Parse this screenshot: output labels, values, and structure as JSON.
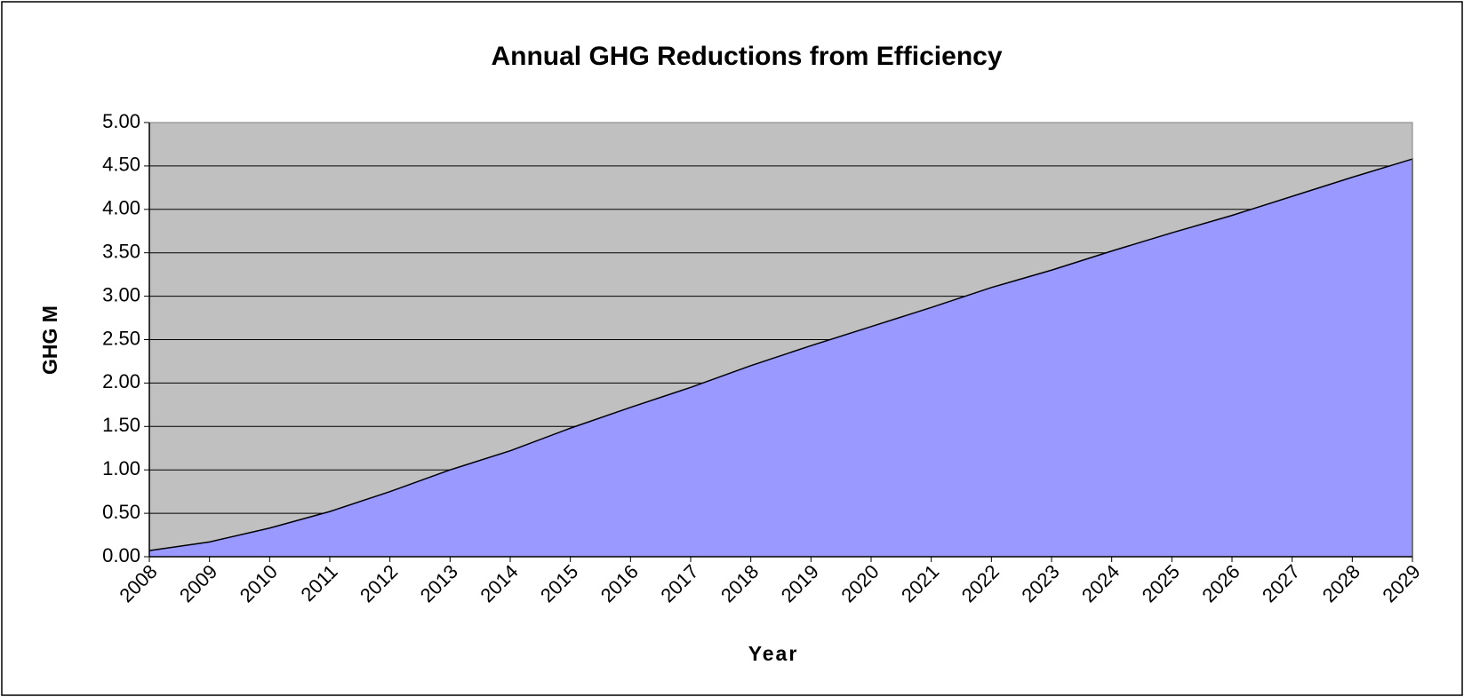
{
  "chart_data": {
    "type": "area",
    "title": "Annual GHG Reductions from Efficiency",
    "xlabel": "Year",
    "ylabel": "GHG M",
    "categories": [
      "2008",
      "2009",
      "2010",
      "2011",
      "2012",
      "2013",
      "2014",
      "2015",
      "2016",
      "2017",
      "2018",
      "2019",
      "2020",
      "2021",
      "2022",
      "2023",
      "2024",
      "2025",
      "2026",
      "2027",
      "2028",
      "2029"
    ],
    "series": [
      {
        "color": "#9999ff",
        "values": [
          0.07,
          0.17,
          0.33,
          0.52,
          0.75,
          1.0,
          1.22,
          1.48,
          1.72,
          1.95,
          2.2,
          2.43,
          2.65,
          2.87,
          3.1,
          3.3,
          3.52,
          3.73,
          3.93,
          4.15,
          4.37,
          4.58
        ]
      }
    ],
    "ylim": [
      0,
      5
    ],
    "yticks": [
      {
        "value": 0,
        "label": "0.00"
      },
      {
        "value": 0.5,
        "label": "0.50"
      },
      {
        "value": 1,
        "label": "1.00"
      },
      {
        "value": 1.5,
        "label": "1.50"
      },
      {
        "value": 2,
        "label": "2.00"
      },
      {
        "value": 2.5,
        "label": "2.50"
      },
      {
        "value": 3,
        "label": "3.00"
      },
      {
        "value": 3.5,
        "label": "3.50"
      },
      {
        "value": 4,
        "label": "4.00"
      },
      {
        "value": 4.5,
        "label": "4.50"
      },
      {
        "value": 5,
        "label": "5.00"
      }
    ],
    "grid": true,
    "plot_background": "#c0c0c0"
  }
}
